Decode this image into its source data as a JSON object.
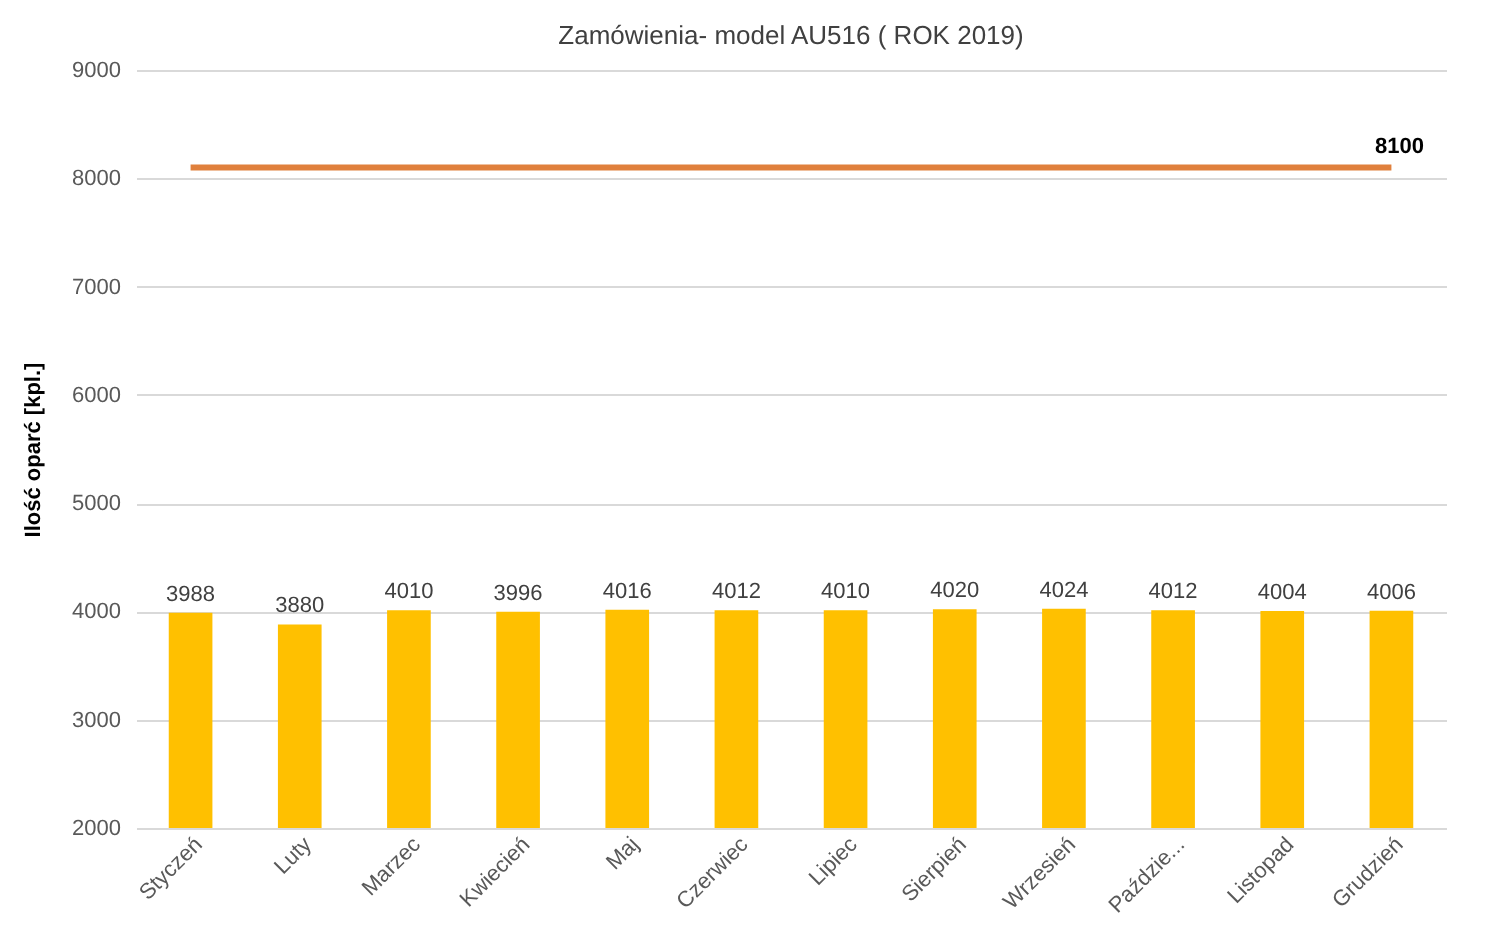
{
  "chart_data": {
    "type": "bar",
    "title": "Zamówienia- model AU516 ( ROK 2019)",
    "ylabel": "Ilość oparć [kpl.]",
    "categories": [
      "Styczeń",
      "Luty",
      "Marzec",
      "Kwiecień",
      "Maj",
      "Czerwiec",
      "Lipiec",
      "Sierpień",
      "Wrzesień",
      "Paździe...",
      "Listopad",
      "Grudzień"
    ],
    "series": [
      {
        "color": "#ffc000",
        "values": [
          3988,
          3880,
          4010,
          3996,
          4016,
          4012,
          4010,
          4020,
          4024,
          4012,
          4004,
          4006
        ],
        "value_labels": [
          "3988",
          "3880",
          "4010",
          "3996",
          "4016",
          "4012",
          "4010",
          "4020",
          "4024",
          "4012",
          "4004",
          "4006"
        ]
      },
      {
        "type": "line",
        "color": "#e0803c",
        "values": [
          8100,
          8100,
          8100,
          8100,
          8100,
          8100,
          8100,
          8100,
          8100,
          8100,
          8100,
          8100
        ],
        "value_labels": [
          null,
          null,
          null,
          null,
          null,
          null,
          null,
          null,
          null,
          null,
          null,
          "8100"
        ]
      }
    ],
    "ylim": [
      2000,
      9000
    ],
    "yticks": [
      2000,
      3000,
      4000,
      5000,
      6000,
      7000,
      8000,
      9000
    ],
    "grid": "y"
  }
}
